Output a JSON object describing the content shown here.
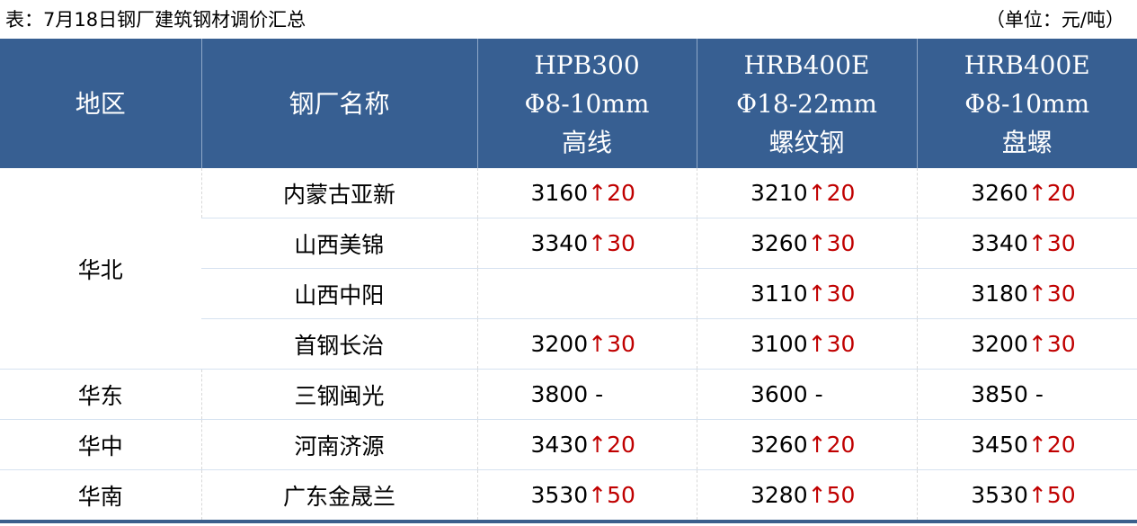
{
  "caption": "表：7月18日钢厂建筑钢材调价汇总",
  "unit": "（单位：元/吨）",
  "headers": [
    {
      "lines": [
        "地区"
      ]
    },
    {
      "lines": [
        "钢厂名称"
      ]
    },
    {
      "lines": [
        "HPB300",
        "Φ8-10mm",
        "高线"
      ]
    },
    {
      "lines": [
        "HRB400E",
        "Φ18-22mm",
        "螺纹钢"
      ]
    },
    {
      "lines": [
        "HRB400E",
        "Φ8-10mm",
        "盘螺"
      ]
    }
  ],
  "regions": [
    {
      "name": "华北",
      "rows": [
        {
          "mill": "内蒙古亚新",
          "prices": [
            {
              "v": "3160",
              "c": "↑20"
            },
            {
              "v": "3210",
              "c": "↑20"
            },
            {
              "v": "3260",
              "c": "↑20"
            }
          ]
        },
        {
          "mill": "山西美锦",
          "prices": [
            {
              "v": "3340",
              "c": "↑30"
            },
            {
              "v": "3260",
              "c": "↑30"
            },
            {
              "v": "3340",
              "c": "↑30"
            }
          ]
        },
        {
          "mill": "山西中阳",
          "prices": [
            {
              "v": "",
              "c": ""
            },
            {
              "v": "3110",
              "c": "↑30"
            },
            {
              "v": "3180",
              "c": "↑30"
            }
          ]
        },
        {
          "mill": "首钢长治",
          "prices": [
            {
              "v": "3200",
              "c": "↑30"
            },
            {
              "v": "3100",
              "c": "↑30"
            },
            {
              "v": "3200",
              "c": "↑30"
            }
          ]
        }
      ]
    },
    {
      "name": "华东",
      "rows": [
        {
          "mill": "三钢闽光",
          "prices": [
            {
              "v": "3800 -",
              "c": ""
            },
            {
              "v": "3600 -",
              "c": ""
            },
            {
              "v": "3850 -",
              "c": ""
            }
          ]
        }
      ]
    },
    {
      "name": "华中",
      "rows": [
        {
          "mill": "河南济源",
          "prices": [
            {
              "v": "3430",
              "c": "↑20"
            },
            {
              "v": "3260",
              "c": "↑20"
            },
            {
              "v": "3450",
              "c": "↑20"
            }
          ]
        }
      ]
    },
    {
      "name": "华南",
      "rows": [
        {
          "mill": "广东金晟兰",
          "prices": [
            {
              "v": "3530",
              "c": "↑50"
            },
            {
              "v": "3280",
              "c": "↑50"
            },
            {
              "v": "3530",
              "c": "↑50"
            }
          ]
        }
      ]
    }
  ],
  "colors": {
    "header_bg": "#375f92",
    "increase": "#c00000"
  }
}
